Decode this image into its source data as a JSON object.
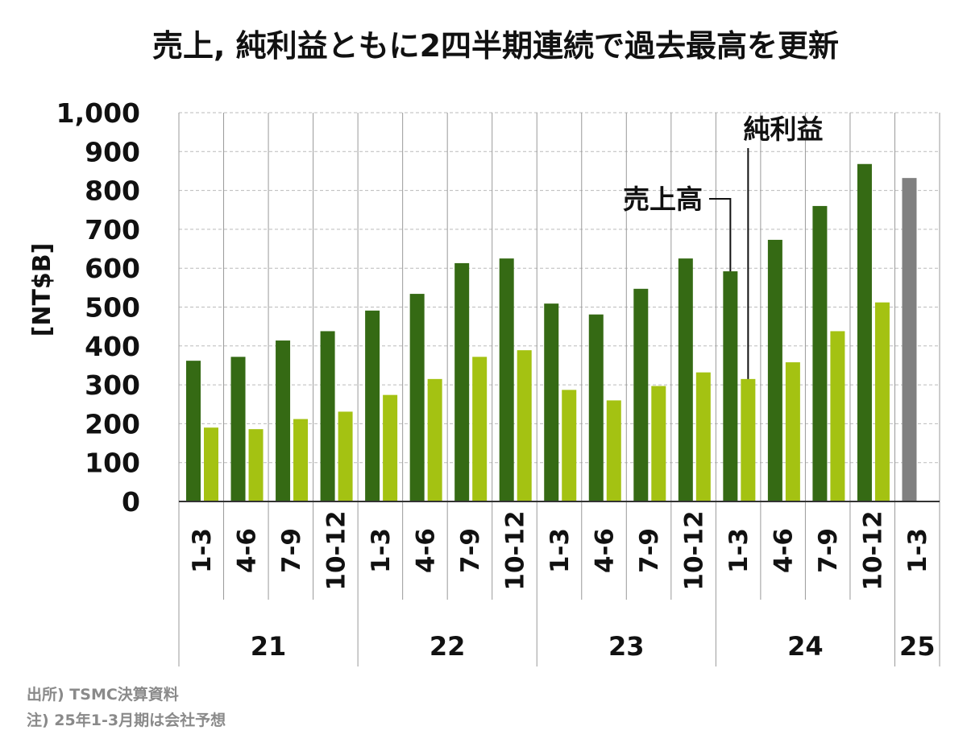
{
  "chart_data": {
    "type": "bar",
    "title": "売上, 純利益ともに2四半期連続で過去最高を更新",
    "ylabel": "[NT$B]",
    "ylim": [
      0,
      1000
    ],
    "yticks": [
      "0",
      "100",
      "200",
      "300",
      "400",
      "500",
      "600",
      "700",
      "800",
      "900",
      "1,000"
    ],
    "grid": true,
    "categories": [
      "1-3",
      "4-6",
      "7-9",
      "10-12",
      "1-3",
      "4-6",
      "7-9",
      "10-12",
      "1-3",
      "4-6",
      "7-9",
      "10-12",
      "1-3",
      "4-6",
      "7-9",
      "10-12",
      "1-3"
    ],
    "years": [
      {
        "label": "21",
        "span": 4
      },
      {
        "label": "22",
        "span": 4
      },
      {
        "label": "23",
        "span": 4
      },
      {
        "label": "24",
        "span": 4
      },
      {
        "label": "25",
        "span": 1
      }
    ],
    "series": [
      {
        "name": "売上高",
        "color": "#356a14",
        "forecast_color": "#808080",
        "values": [
          362,
          372,
          414,
          438,
          491,
          534,
          613,
          625,
          509,
          481,
          547,
          625,
          592,
          673,
          760,
          868,
          832
        ]
      },
      {
        "name": "純利益",
        "color": "#a4c212",
        "values": [
          190,
          186,
          212,
          231,
          274,
          315,
          372,
          389,
          287,
          260,
          297,
          332,
          315,
          358,
          438,
          512,
          null
        ]
      }
    ]
  },
  "footnotes": {
    "source": "出所) TSMC決算資料",
    "note": "注) 25年1-3月期は会社予想"
  }
}
